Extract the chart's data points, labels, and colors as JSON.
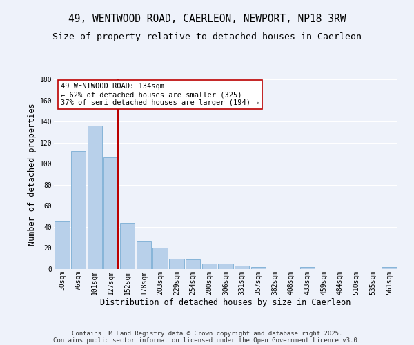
{
  "title": "49, WENTWOOD ROAD, CAERLEON, NEWPORT, NP18 3RW",
  "subtitle": "Size of property relative to detached houses in Caerleon",
  "xlabel": "Distribution of detached houses by size in Caerleon",
  "ylabel": "Number of detached properties",
  "categories": [
    "50sqm",
    "76sqm",
    "101sqm",
    "127sqm",
    "152sqm",
    "178sqm",
    "203sqm",
    "229sqm",
    "254sqm",
    "280sqm",
    "306sqm",
    "331sqm",
    "357sqm",
    "382sqm",
    "408sqm",
    "433sqm",
    "459sqm",
    "484sqm",
    "510sqm",
    "535sqm",
    "561sqm"
  ],
  "values": [
    45,
    112,
    136,
    106,
    44,
    27,
    20,
    10,
    9,
    5,
    5,
    3,
    2,
    0,
    0,
    2,
    0,
    0,
    0,
    0,
    2
  ],
  "bar_color": "#b8d0ea",
  "bar_edge_color": "#7aadd4",
  "background_color": "#eef2fa",
  "grid_color": "#ffffff",
  "vline_x": 3.42,
  "vline_color": "#bb0000",
  "annotation_line1": "49 WENTWOOD ROAD: 134sqm",
  "annotation_line2": "← 62% of detached houses are smaller (325)",
  "annotation_line3": "37% of semi-detached houses are larger (194) →",
  "annotation_box_color": "#ffffff",
  "annotation_box_edge": "#bb0000",
  "ylim": [
    0,
    180
  ],
  "yticks": [
    0,
    20,
    40,
    60,
    80,
    100,
    120,
    140,
    160,
    180
  ],
  "footer_line1": "Contains HM Land Registry data © Crown copyright and database right 2025.",
  "footer_line2": "Contains public sector information licensed under the Open Government Licence v3.0.",
  "title_fontsize": 10.5,
  "subtitle_fontsize": 9.5,
  "xlabel_fontsize": 8.5,
  "ylabel_fontsize": 8.5,
  "tick_fontsize": 7,
  "annotation_fontsize": 7.5,
  "footer_fontsize": 6.5
}
